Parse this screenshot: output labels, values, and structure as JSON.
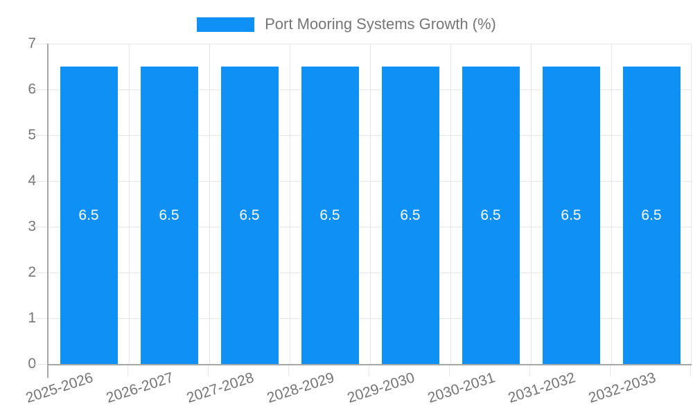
{
  "chart_data": {
    "type": "bar",
    "title": "",
    "categories": [
      "2025-2026",
      "2026-2027",
      "2027-2028",
      "2028-2029",
      "2029-2030",
      "2030-2031",
      "2031-2032",
      "2032-2033"
    ],
    "series": [
      {
        "name": "Port Mooring Systems Growth (%)",
        "values": [
          6.5,
          6.5,
          6.5,
          6.5,
          6.5,
          6.5,
          6.5,
          6.5
        ]
      }
    ],
    "bar_labels": [
      "6.5",
      "6.5",
      "6.5",
      "6.5",
      "6.5",
      "6.5",
      "6.5",
      "6.5"
    ],
    "xlabel": "",
    "ylabel": "",
    "ylim": [
      0,
      7
    ],
    "yticks": [
      0,
      1,
      2,
      3,
      4,
      5,
      6,
      7
    ],
    "grid": true,
    "legend_position": "top",
    "colors": {
      "bar": "#0E90F5",
      "bar_label": "#ffffff",
      "axis_text": "#757575",
      "grid_line": "#e6e6e6",
      "axis_line": "#a6a6a6",
      "background": "#ffffff"
    }
  }
}
